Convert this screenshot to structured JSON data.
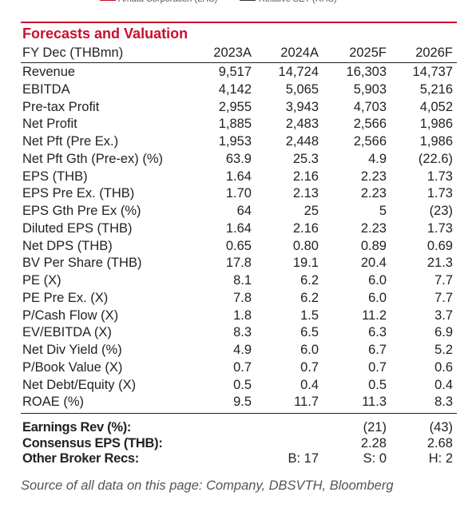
{
  "legend": [
    "Amata Corporation (LHS)",
    "Relative SET (RHS)"
  ],
  "header": {
    "title": "Forecasts and Valuation"
  },
  "table": {
    "columns": [
      "FY Dec (THBmn)",
      "2023A",
      "2024A",
      "2025F",
      "2026F"
    ],
    "rows": [
      [
        "Revenue",
        "9,517",
        "14,724",
        "16,303",
        "14,737"
      ],
      [
        "EBITDA",
        "4,142",
        "5,065",
        "5,903",
        "5,216"
      ],
      [
        "Pre-tax Profit",
        "2,955",
        "3,943",
        "4,703",
        "4,052"
      ],
      [
        "Net Profit",
        "1,885",
        "2,483",
        "2,566",
        "1,986"
      ],
      [
        "Net Pft (Pre Ex.)",
        "1,953",
        "2,448",
        "2,566",
        "1,986"
      ],
      [
        "Net Pft Gth (Pre-ex) (%)",
        "63.9",
        "25.3",
        "4.9",
        "(22.6)"
      ],
      [
        "EPS (THB)",
        "1.64",
        "2.16",
        "2.23",
        "1.73"
      ],
      [
        "EPS Pre Ex. (THB)",
        "1.70",
        "2.13",
        "2.23",
        "1.73"
      ],
      [
        "EPS Gth Pre Ex (%)",
        "64",
        "25",
        "5",
        "(23)"
      ],
      [
        "Diluted EPS (THB)",
        "1.64",
        "2.16",
        "2.23",
        "1.73"
      ],
      [
        "Net DPS (THB)",
        "0.65",
        "0.80",
        "0.89",
        "0.69"
      ],
      [
        "BV Per Share (THB)",
        "17.8",
        "19.1",
        "20.4",
        "21.3"
      ],
      [
        "PE (X)",
        "8.1",
        "6.2",
        "6.0",
        "7.7"
      ],
      [
        "PE Pre Ex. (X)",
        "7.8",
        "6.2",
        "6.0",
        "7.7"
      ],
      [
        "P/Cash Flow (X)",
        "1.8",
        "1.5",
        "11.2",
        "3.7"
      ],
      [
        "EV/EBITDA (X)",
        "8.3",
        "6.5",
        "6.3",
        "6.9"
      ],
      [
        "Net Div Yield (%)",
        "4.9",
        "6.0",
        "6.7",
        "5.2"
      ],
      [
        "P/Book Value (X)",
        "0.7",
        "0.7",
        "0.7",
        "0.6"
      ],
      [
        "Net Debt/Equity (X)",
        "0.5",
        "0.4",
        "0.5",
        "0.4"
      ],
      [
        "ROAE (%)",
        "9.5",
        "11.7",
        "11.3",
        "8.3"
      ]
    ],
    "extra_rows": [
      [
        "Earnings Rev (%):",
        null,
        null,
        "(21)",
        "(43)"
      ],
      [
        "Consensus EPS (THB):",
        null,
        null,
        "2.28",
        "2.68"
      ],
      [
        "Other Broker Recs:",
        null,
        "B: 17",
        "S: 0",
        "H: 2"
      ]
    ]
  },
  "source": "Source of all data on this page: Company, DBSVTH, Bloomberg"
}
